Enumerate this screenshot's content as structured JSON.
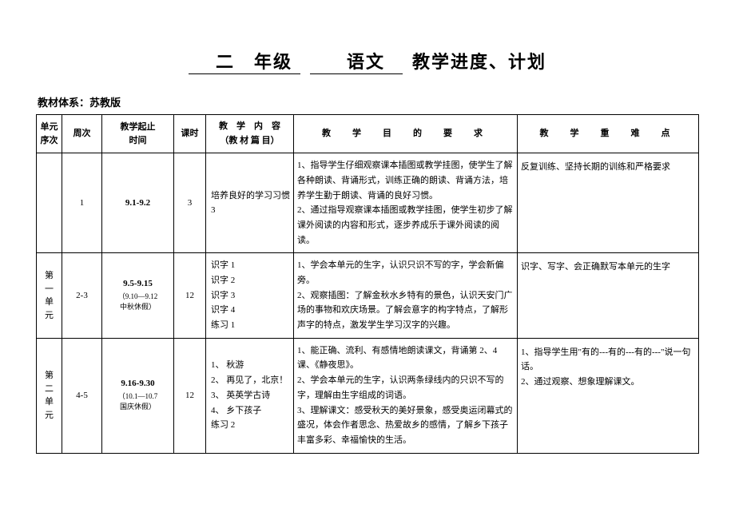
{
  "title": {
    "part1": "　二　年级",
    "part2": "　语文　",
    "part3": "教学进度、计划"
  },
  "subtitle": "教材体系：苏教版",
  "headers": {
    "unit": "单元序次",
    "week": "周次",
    "time": "教学起止时间",
    "hours": "课时",
    "content_l1": "教　学　内　容",
    "content_l2": "（教 材 篇 目）",
    "req": "教　学　目　的　要　求",
    "key": "教　学　重　难　点"
  },
  "rows": [
    {
      "unit": "",
      "week": "1",
      "time_main": "9.1-9.2",
      "time_note": "",
      "hours": "3",
      "content": "培养良好的学习习惯3",
      "req": "1、指导学生仔细观察课本插图或教学挂图，使学生了解各种朗读、背诵形式，训练正确的朗读、背诵方法，培养学生勤于朗读、背诵的良好习惯。\n2、通过指导观察课本插图或教学挂图，使学生初步了解课外阅读的内容和形式，逐步养成乐于课外阅读的阅读。",
      "key": "反复训练、坚持长期的训练和严格要求"
    },
    {
      "unit": "第一单元",
      "week": "2-3",
      "time_main": "9.5-9.15",
      "time_note": "（9.10—9.12中秋休假）",
      "hours": "12",
      "content": "识字 1\n识字 2\n识字 3\n识字 4\n练习 1",
      "req": "1、学会本单元的生字，认识只识不写的字，学会新偏旁。\n2、观察插图：了解金秋水乡特有的景色，认识天安门广场的事物和欢庆场景。了解会意字的构字特点，了解形声字的特点，激发学生学习汉字的兴趣。",
      "key": "识字、写字、会正确默写本单元的生字"
    },
    {
      "unit": "第二单元",
      "week": "4-5",
      "time_main": "9.16-9.30",
      "time_note": "（10.1—10.7国庆休假）",
      "hours": "12",
      "content": "1、 秋游\n2、 再见了，北京！\n3、 英英学古诗\n4、 乡下孩子\n练习 2",
      "req": "1、能正确、流利、有感情地朗读课文，背诵第 2、4课、《静夜思》。\n2、学会本单元的生字，认识两条绿线内的只识不写的字，理解由生字组成的词语。\n3、理解课文：感受秋天的美好景象，感受奥运闭幕式的盛况，体会作者思念、热爱故乡的感情，了解乡下孩子丰富多彩、幸福愉快的生活。",
      "key": "1、指导学生用\"有的---有的---有的---\"说一句话。\n2、通过观察、想象理解课文。"
    }
  ]
}
